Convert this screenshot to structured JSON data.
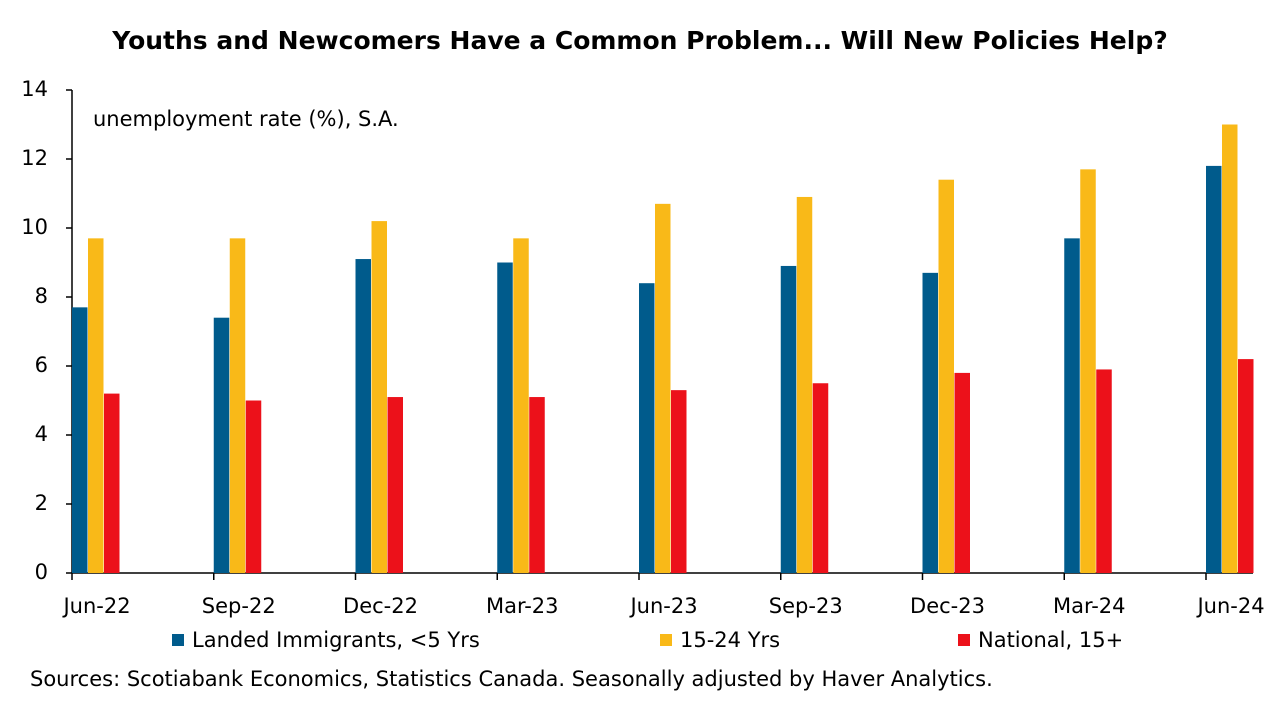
{
  "chart_data": {
    "type": "bar",
    "title": "Youths and Newcomers Have a Common Problem... Will New Policies Help?",
    "annotation": "unemployment rate (%), S.A.",
    "source": "Sources: Scotiabank Economics, Statistics Canada. Seasonally adjusted by Haver Analytics.",
    "categories": [
      "Jun-22",
      "Sep-22",
      "Dec-22",
      "Mar-23",
      "Jun-23",
      "Sep-23",
      "Dec-23",
      "Mar-24",
      "Jun-24"
    ],
    "series": [
      {
        "name": "Landed Immigrants, <5 Yrs",
        "color": "#005b8c",
        "values": [
          7.7,
          7.4,
          9.1,
          9.0,
          8.4,
          8.9,
          8.7,
          9.7,
          11.8
        ]
      },
      {
        "name": "15-24 Yrs",
        "color": "#f9b918",
        "values": [
          9.7,
          9.7,
          10.2,
          9.7,
          10.7,
          10.9,
          11.4,
          11.7,
          13.0
        ]
      },
      {
        "name": "National, 15+",
        "color": "#ec111a",
        "values": [
          5.2,
          5.0,
          5.1,
          5.1,
          5.3,
          5.5,
          5.8,
          5.9,
          6.2
        ]
      }
    ],
    "ylim": [
      0,
      14
    ],
    "yticks": [
      0,
      2,
      4,
      6,
      8,
      10,
      12,
      14
    ],
    "grid": false
  }
}
